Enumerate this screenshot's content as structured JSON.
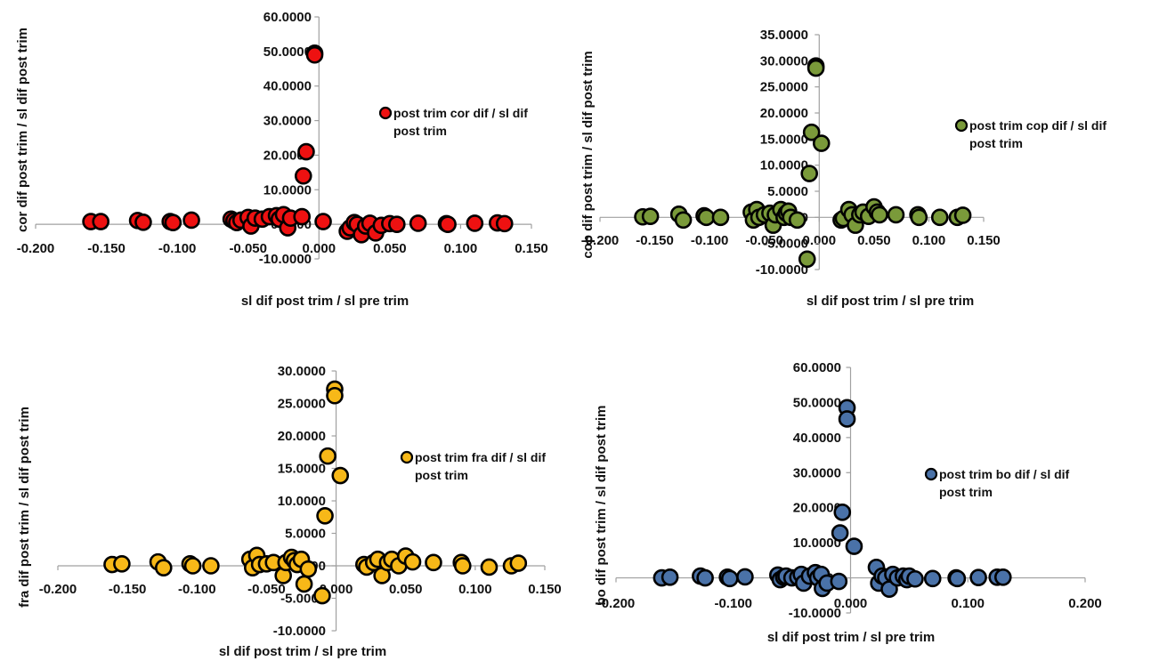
{
  "chart_data": [
    {
      "id": "cor",
      "type": "scatter",
      "title": "",
      "xlabel": "sl dif post trim / sl pre trim",
      "ylabel": "cor dif post trim / sl dif post trim",
      "legend": "post trim cor dif / sl dif post trim",
      "legend_lines": [
        "post trim cor dif / sl dif",
        "post trim"
      ],
      "legend_position": "right",
      "grid": false,
      "color": "#ee1111",
      "xlim": [
        -0.2,
        0.15
      ],
      "ylim": [
        -10,
        60
      ],
      "xticks": [
        -0.2,
        -0.15,
        -0.1,
        -0.05,
        0.0,
        0.05,
        0.1,
        0.15
      ],
      "xtick_labels": [
        "-0.200",
        "-0.150",
        "-0.100",
        "-0.050",
        "0.000",
        "0.050",
        "0.100",
        "0.150"
      ],
      "yticks": [
        -10,
        0,
        10,
        20,
        30,
        40,
        50,
        60
      ],
      "ytick_labels": [
        "-10.0000",
        "0.0000",
        "10.0000",
        "20.0000",
        "30.0000",
        "40.0000",
        "50.0000",
        "60.0000"
      ],
      "points": [
        [
          -0.003,
          49.5
        ],
        [
          -0.003,
          49.0
        ],
        [
          -0.009,
          21.0
        ],
        [
          -0.011,
          14.0
        ],
        [
          -0.161,
          0.8
        ],
        [
          -0.154,
          0.8
        ],
        [
          -0.128,
          1.1
        ],
        [
          -0.124,
          0.6
        ],
        [
          -0.105,
          0.8
        ],
        [
          -0.103,
          0.5
        ],
        [
          -0.09,
          1.2
        ],
        [
          -0.062,
          1.5
        ],
        [
          -0.06,
          1.0
        ],
        [
          -0.058,
          0.5
        ],
        [
          -0.055,
          1.2
        ],
        [
          -0.05,
          2.0
        ],
        [
          -0.048,
          -0.5
        ],
        [
          -0.045,
          1.8
        ],
        [
          -0.04,
          1.5
        ],
        [
          -0.035,
          2.2
        ],
        [
          -0.03,
          2.5
        ],
        [
          -0.028,
          1.5
        ],
        [
          -0.025,
          2.8
        ],
        [
          -0.022,
          -1.0
        ],
        [
          -0.02,
          1.8
        ],
        [
          -0.012,
          2.2
        ],
        [
          0.003,
          0.8
        ],
        [
          0.02,
          -2.0
        ],
        [
          0.022,
          -1.0
        ],
        [
          0.025,
          0.5
        ],
        [
          0.027,
          0.0
        ],
        [
          0.03,
          -3.0
        ],
        [
          0.033,
          -0.5
        ],
        [
          0.036,
          0.3
        ],
        [
          0.04,
          -2.5
        ],
        [
          0.044,
          -0.3
        ],
        [
          0.05,
          0.2
        ],
        [
          0.055,
          0.0
        ],
        [
          0.07,
          0.3
        ],
        [
          0.09,
          0.2
        ],
        [
          0.091,
          0.0
        ],
        [
          0.11,
          0.3
        ],
        [
          0.126,
          0.4
        ],
        [
          0.131,
          0.2
        ]
      ]
    },
    {
      "id": "cop",
      "type": "scatter",
      "title": "",
      "xlabel": "sl dif post trim / sl pre trim",
      "ylabel": "cop dif post trim / sl dif post trim",
      "legend": "post trim cop dif / sl dif post trim",
      "legend_lines": [
        "post trim cop dif / sl dif",
        "post trim"
      ],
      "legend_position": "right",
      "grid": false,
      "color": "#7a9a3a",
      "xlim": [
        -0.2,
        0.15
      ],
      "ylim": [
        -10,
        35
      ],
      "xticks": [
        -0.2,
        -0.15,
        -0.1,
        -0.05,
        0.0,
        0.05,
        0.1,
        0.15
      ],
      "xtick_labels": [
        "-0.200",
        "-0.150",
        "-0.100",
        "-0.050",
        "0.000",
        "0.050",
        "0.100",
        "0.150"
      ],
      "yticks": [
        -10,
        -5,
        0,
        5,
        10,
        15,
        20,
        25,
        30,
        35
      ],
      "ytick_labels": [
        "-10.0000",
        "-5.0000",
        "0.0000",
        "5.0000",
        "10.0000",
        "15.0000",
        "20.0000",
        "25.0000",
        "30.0000",
        "35.0000"
      ],
      "points": [
        [
          -0.003,
          29.0
        ],
        [
          -0.003,
          28.6
        ],
        [
          -0.007,
          16.3
        ],
        [
          0.002,
          14.2
        ],
        [
          -0.009,
          8.4
        ],
        [
          -0.011,
          -8.0
        ],
        [
          -0.161,
          0.1
        ],
        [
          -0.154,
          0.2
        ],
        [
          -0.128,
          0.6
        ],
        [
          -0.124,
          -0.5
        ],
        [
          -0.105,
          0.3
        ],
        [
          -0.103,
          0.0
        ],
        [
          -0.09,
          0.0
        ],
        [
          -0.062,
          1.0
        ],
        [
          -0.06,
          -0.5
        ],
        [
          -0.057,
          1.5
        ],
        [
          -0.055,
          0.0
        ],
        [
          -0.05,
          0.5
        ],
        [
          -0.045,
          0.8
        ],
        [
          -0.042,
          -1.5
        ],
        [
          -0.04,
          0.5
        ],
        [
          -0.035,
          1.5
        ],
        [
          -0.032,
          0.0
        ],
        [
          -0.03,
          0.8
        ],
        [
          -0.028,
          1.2
        ],
        [
          -0.026,
          0.0
        ],
        [
          -0.02,
          -0.5
        ],
        [
          0.02,
          -0.5
        ],
        [
          0.022,
          -0.2
        ],
        [
          0.027,
          1.5
        ],
        [
          0.03,
          0.5
        ],
        [
          0.033,
          -1.5
        ],
        [
          0.037,
          0.5
        ],
        [
          0.04,
          1.0
        ],
        [
          0.045,
          0.2
        ],
        [
          0.05,
          2.0
        ],
        [
          0.053,
          1.0
        ],
        [
          0.055,
          0.5
        ],
        [
          0.07,
          0.5
        ],
        [
          0.09,
          0.5
        ],
        [
          0.091,
          0.0
        ],
        [
          0.11,
          0.0
        ],
        [
          0.126,
          0.0
        ],
        [
          0.131,
          0.4
        ]
      ]
    },
    {
      "id": "fra",
      "type": "scatter",
      "title": "",
      "xlabel": "sl dif post trim / sl pre trim",
      "ylabel": "fra dif post trim / sl dif post trim",
      "legend": "post trim fra dif / sl dif post trim",
      "legend_lines": [
        "post trim fra dif / sl dif",
        "post trim"
      ],
      "legend_position": "right",
      "grid": false,
      "color": "#f7b818",
      "xlim": [
        -0.2,
        0.15
      ],
      "ylim": [
        -10,
        30
      ],
      "xticks": [
        -0.2,
        -0.15,
        -0.1,
        -0.05,
        0.0,
        0.05,
        0.1,
        0.15
      ],
      "xtick_labels": [
        "-0.200",
        "-0.150",
        "-0.100",
        "-0.050",
        "0.000",
        "0.050",
        "0.100",
        "0.150"
      ],
      "yticks": [
        -10,
        -5,
        0,
        5,
        10,
        15,
        20,
        25,
        30
      ],
      "ytick_labels": [
        "-10.0000",
        "-5.0000",
        "0.0000",
        "5.0000",
        "10.0000",
        "15.0000",
        "20.0000",
        "25.0000",
        "30.0000"
      ],
      "points": [
        [
          -0.001,
          27.2
        ],
        [
          -0.001,
          26.2
        ],
        [
          -0.006,
          16.9
        ],
        [
          0.003,
          13.9
        ],
        [
          -0.008,
          7.7
        ],
        [
          -0.01,
          -4.6
        ],
        [
          -0.161,
          0.2
        ],
        [
          -0.154,
          0.3
        ],
        [
          -0.128,
          0.6
        ],
        [
          -0.124,
          -0.3
        ],
        [
          -0.105,
          0.3
        ],
        [
          -0.103,
          0.0
        ],
        [
          -0.09,
          0.0
        ],
        [
          -0.062,
          1.0
        ],
        [
          -0.06,
          -0.3
        ],
        [
          -0.057,
          1.6
        ],
        [
          -0.055,
          0.2
        ],
        [
          -0.05,
          0.3
        ],
        [
          -0.045,
          0.5
        ],
        [
          -0.038,
          -1.5
        ],
        [
          -0.036,
          0.5
        ],
        [
          -0.032,
          1.3
        ],
        [
          -0.03,
          0.8
        ],
        [
          -0.028,
          0.2
        ],
        [
          -0.025,
          1.0
        ],
        [
          -0.023,
          -2.8
        ],
        [
          -0.02,
          -0.5
        ],
        [
          0.02,
          0.2
        ],
        [
          0.022,
          -0.2
        ],
        [
          0.027,
          0.5
        ],
        [
          0.03,
          1.0
        ],
        [
          0.033,
          -1.5
        ],
        [
          0.037,
          0.5
        ],
        [
          0.04,
          1.0
        ],
        [
          0.045,
          0.0
        ],
        [
          0.05,
          1.5
        ],
        [
          0.055,
          0.6
        ],
        [
          0.07,
          0.5
        ],
        [
          0.09,
          0.5
        ],
        [
          0.091,
          0.0
        ],
        [
          0.11,
          -0.2
        ],
        [
          0.126,
          0.0
        ],
        [
          0.131,
          0.4
        ]
      ]
    },
    {
      "id": "bo",
      "type": "scatter",
      "title": "",
      "xlabel": "sl dif post trim / sl pre trim",
      "ylabel": "bo dif post trim / sl dif post trim",
      "legend": "post trim bo dif / sl dif post trim",
      "legend_lines": [
        "post trim bo dif / sl dif",
        "post trim"
      ],
      "legend_position": "right",
      "grid": false,
      "color": "#4a72a8",
      "xlim": [
        -0.2,
        0.2
      ],
      "ylim": [
        -10,
        60
      ],
      "xticks": [
        -0.2,
        -0.1,
        0.0,
        0.1,
        0.2
      ],
      "xtick_labels": [
        "-0.200",
        "-0.100",
        "0.000",
        "0.100",
        "0.200"
      ],
      "yticks": [
        -10,
        0,
        10,
        20,
        30,
        40,
        50,
        60
      ],
      "ytick_labels": [
        "-10.0000",
        "0.0000",
        "10.0000",
        "20.0000",
        "30.0000",
        "40.0000",
        "50.0000",
        "60.0000"
      ],
      "points": [
        [
          -0.003,
          48.5
        ],
        [
          -0.003,
          45.3
        ],
        [
          -0.007,
          18.7
        ],
        [
          -0.009,
          12.8
        ],
        [
          0.003,
          9.0
        ],
        [
          -0.161,
          0.0
        ],
        [
          -0.154,
          0.2
        ],
        [
          -0.128,
          0.5
        ],
        [
          -0.124,
          0.0
        ],
        [
          -0.105,
          0.2
        ],
        [
          -0.103,
          -0.2
        ],
        [
          -0.09,
          0.3
        ],
        [
          -0.062,
          0.8
        ],
        [
          -0.06,
          -0.5
        ],
        [
          -0.057,
          0.2
        ],
        [
          -0.055,
          0.5
        ],
        [
          -0.05,
          0.0
        ],
        [
          -0.045,
          0.2
        ],
        [
          -0.042,
          1.0
        ],
        [
          -0.04,
          -1.5
        ],
        [
          -0.035,
          0.5
        ],
        [
          -0.03,
          1.5
        ],
        [
          -0.028,
          0.0
        ],
        [
          -0.025,
          1.0
        ],
        [
          -0.024,
          -3.0
        ],
        [
          -0.02,
          -1.5
        ],
        [
          -0.01,
          -1.0
        ],
        [
          0.022,
          3.0
        ],
        [
          0.024,
          -1.5
        ],
        [
          0.027,
          0.5
        ],
        [
          0.03,
          0.0
        ],
        [
          0.033,
          -3.2
        ],
        [
          0.036,
          1.0
        ],
        [
          0.04,
          0.0
        ],
        [
          0.045,
          0.5
        ],
        [
          0.048,
          -0.5
        ],
        [
          0.05,
          0.5
        ],
        [
          0.055,
          -0.3
        ],
        [
          0.07,
          -0.2
        ],
        [
          0.09,
          0.0
        ],
        [
          0.091,
          -0.2
        ],
        [
          0.109,
          0.1
        ],
        [
          0.125,
          0.2
        ],
        [
          0.13,
          0.2
        ]
      ]
    }
  ]
}
